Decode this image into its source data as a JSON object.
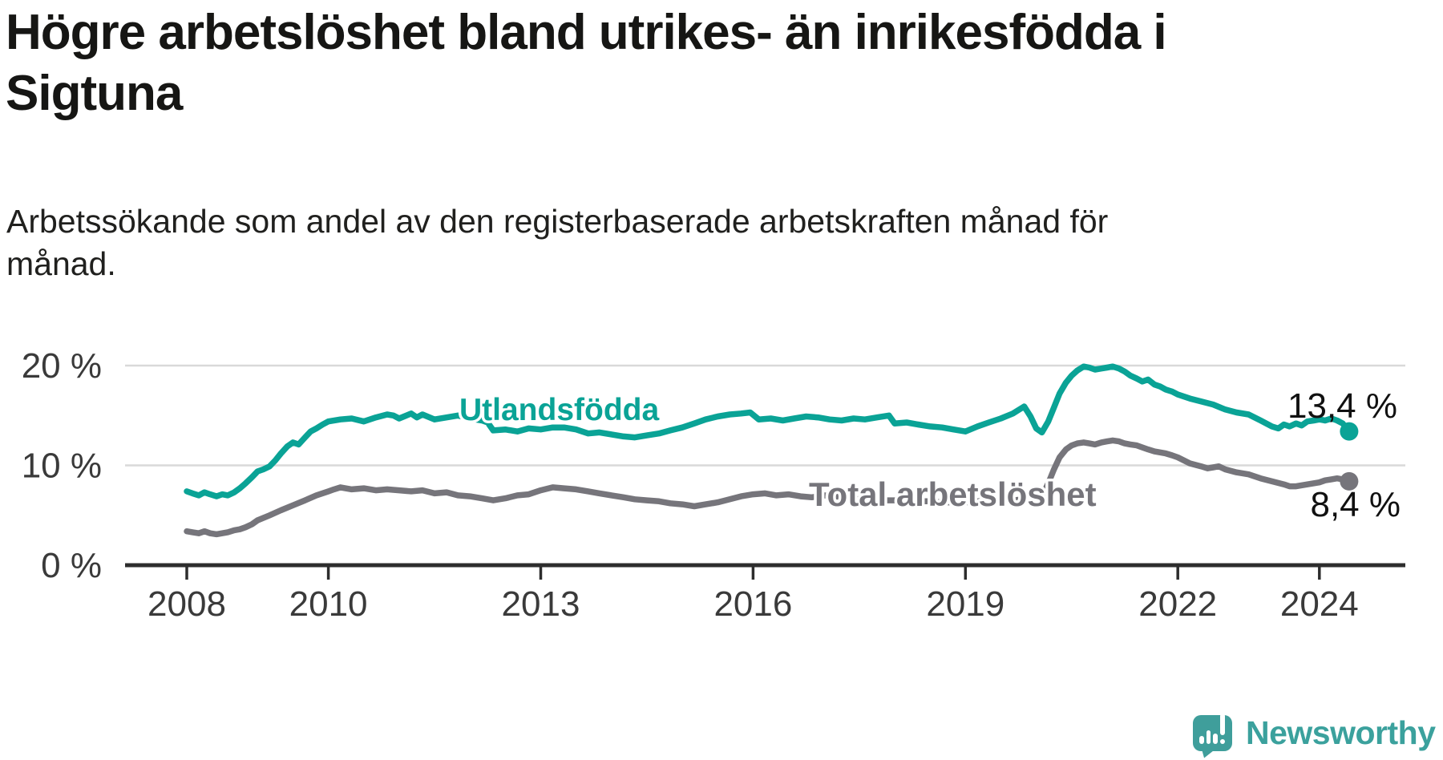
{
  "header": {
    "title": "Högre arbetslöshet bland utrikes- än inrikesfödda i Sigtuna",
    "title_lines": [
      "Högre arbetslöshet bland utrikes- än inrikesfödda i",
      "Sigtuna"
    ],
    "subtitle": "Arbetssökande som andel av den registerbaserade arbetskraften månad för månad.",
    "subtitle_lines": [
      "Arbetssökande som andel av den registerbaserade arbetskraften månad för",
      "månad."
    ]
  },
  "chart_data": {
    "type": "line",
    "title": "Högre arbetslöshet bland utrikes- än inrikesfödda i Sigtuna",
    "subtitle": "Arbetssökande som andel av den registerbaserade arbetskraften månad för månad.",
    "grid": "horizontal-only",
    "legend_position": "inline-labels",
    "x_axis": {
      "label": "",
      "tick_years": [
        2008,
        2010,
        2013,
        2016,
        2019,
        2022,
        2024
      ],
      "tick_labels": [
        "2008",
        "2010",
        "2013",
        "2016",
        "2019",
        "2022",
        "2024"
      ],
      "range": [
        2008,
        2024.42
      ]
    },
    "y_axis": {
      "label": "",
      "unit": "%",
      "tick_values": [
        0,
        10,
        20
      ],
      "tick_labels": [
        "0 %",
        "10 %",
        "20 %"
      ],
      "gridlines": [
        10,
        20
      ],
      "range": [
        0,
        21
      ]
    },
    "series": [
      {
        "name": "Utlandsfödda",
        "color": "#0aa396",
        "end_value": 13.4,
        "end_label": "13,4 %",
        "points": [
          [
            2008.0,
            7.4
          ],
          [
            2008.08,
            7.2
          ],
          [
            2008.17,
            7.0
          ],
          [
            2008.25,
            7.3
          ],
          [
            2008.33,
            7.1
          ],
          [
            2008.42,
            6.9
          ],
          [
            2008.5,
            7.1
          ],
          [
            2008.58,
            7.0
          ],
          [
            2008.67,
            7.3
          ],
          [
            2008.75,
            7.7
          ],
          [
            2008.83,
            8.2
          ],
          [
            2008.92,
            8.8
          ],
          [
            2009.0,
            9.4
          ],
          [
            2009.08,
            9.6
          ],
          [
            2009.17,
            9.9
          ],
          [
            2009.25,
            10.5
          ],
          [
            2009.33,
            11.2
          ],
          [
            2009.42,
            11.9
          ],
          [
            2009.5,
            12.3
          ],
          [
            2009.58,
            12.1
          ],
          [
            2009.67,
            12.8
          ],
          [
            2009.75,
            13.4
          ],
          [
            2009.83,
            13.7
          ],
          [
            2009.92,
            14.1
          ],
          [
            2010.0,
            14.4
          ],
          [
            2010.17,
            14.6
          ],
          [
            2010.33,
            14.7
          ],
          [
            2010.5,
            14.4
          ],
          [
            2010.67,
            14.8
          ],
          [
            2010.83,
            15.1
          ],
          [
            2010.92,
            15.0
          ],
          [
            2011.0,
            14.7
          ],
          [
            2011.17,
            15.2
          ],
          [
            2011.25,
            14.8
          ],
          [
            2011.33,
            15.1
          ],
          [
            2011.5,
            14.6
          ],
          [
            2011.67,
            14.8
          ],
          [
            2011.83,
            15.0
          ],
          [
            2012.0,
            14.7
          ],
          [
            2012.17,
            14.5
          ],
          [
            2012.25,
            14.3
          ],
          [
            2012.33,
            13.5
          ],
          [
            2012.5,
            13.6
          ],
          [
            2012.67,
            13.4
          ],
          [
            2012.83,
            13.7
          ],
          [
            2013.0,
            13.6
          ],
          [
            2013.17,
            13.8
          ],
          [
            2013.33,
            13.8
          ],
          [
            2013.5,
            13.6
          ],
          [
            2013.67,
            13.2
          ],
          [
            2013.83,
            13.3
          ],
          [
            2014.0,
            13.1
          ],
          [
            2014.17,
            12.9
          ],
          [
            2014.33,
            12.8
          ],
          [
            2014.5,
            13.0
          ],
          [
            2014.67,
            13.2
          ],
          [
            2014.83,
            13.5
          ],
          [
            2015.0,
            13.8
          ],
          [
            2015.17,
            14.2
          ],
          [
            2015.33,
            14.6
          ],
          [
            2015.5,
            14.9
          ],
          [
            2015.67,
            15.1
          ],
          [
            2015.83,
            15.2
          ],
          [
            2015.96,
            15.3
          ],
          [
            2016.08,
            14.6
          ],
          [
            2016.25,
            14.7
          ],
          [
            2016.42,
            14.5
          ],
          [
            2016.58,
            14.7
          ],
          [
            2016.75,
            14.9
          ],
          [
            2016.92,
            14.8
          ],
          [
            2017.08,
            14.6
          ],
          [
            2017.25,
            14.5
          ],
          [
            2017.42,
            14.7
          ],
          [
            2017.58,
            14.6
          ],
          [
            2017.75,
            14.8
          ],
          [
            2017.92,
            15.0
          ],
          [
            2018.0,
            14.2
          ],
          [
            2018.17,
            14.3
          ],
          [
            2018.33,
            14.1
          ],
          [
            2018.5,
            13.9
          ],
          [
            2018.67,
            13.8
          ],
          [
            2018.83,
            13.6
          ],
          [
            2019.0,
            13.4
          ],
          [
            2019.17,
            13.9
          ],
          [
            2019.33,
            14.3
          ],
          [
            2019.5,
            14.7
          ],
          [
            2019.67,
            15.2
          ],
          [
            2019.83,
            15.9
          ],
          [
            2019.92,
            14.9
          ],
          [
            2020.0,
            13.7
          ],
          [
            2020.08,
            13.3
          ],
          [
            2020.17,
            14.4
          ],
          [
            2020.25,
            15.8
          ],
          [
            2020.33,
            17.2
          ],
          [
            2020.42,
            18.3
          ],
          [
            2020.5,
            19.0
          ],
          [
            2020.58,
            19.5
          ],
          [
            2020.67,
            19.9
          ],
          [
            2020.75,
            19.8
          ],
          [
            2020.83,
            19.6
          ],
          [
            2020.92,
            19.7
          ],
          [
            2021.0,
            19.8
          ],
          [
            2021.08,
            19.9
          ],
          [
            2021.17,
            19.7
          ],
          [
            2021.25,
            19.4
          ],
          [
            2021.33,
            19.0
          ],
          [
            2021.42,
            18.7
          ],
          [
            2021.5,
            18.4
          ],
          [
            2021.58,
            18.6
          ],
          [
            2021.67,
            18.1
          ],
          [
            2021.75,
            17.9
          ],
          [
            2021.83,
            17.6
          ],
          [
            2021.92,
            17.4
          ],
          [
            2022.0,
            17.1
          ],
          [
            2022.17,
            16.7
          ],
          [
            2022.33,
            16.4
          ],
          [
            2022.5,
            16.1
          ],
          [
            2022.67,
            15.6
          ],
          [
            2022.83,
            15.3
          ],
          [
            2023.0,
            15.1
          ],
          [
            2023.17,
            14.5
          ],
          [
            2023.33,
            13.9
          ],
          [
            2023.42,
            13.7
          ],
          [
            2023.5,
            14.1
          ],
          [
            2023.58,
            13.9
          ],
          [
            2023.67,
            14.2
          ],
          [
            2023.75,
            14.0
          ],
          [
            2023.83,
            14.4
          ],
          [
            2023.92,
            14.5
          ],
          [
            2024.0,
            14.6
          ],
          [
            2024.08,
            14.5
          ],
          [
            2024.17,
            14.7
          ],
          [
            2024.25,
            14.5
          ],
          [
            2024.33,
            14.2
          ],
          [
            2024.42,
            13.4
          ]
        ]
      },
      {
        "name": "Total arbetslöshet",
        "color": "#76757b",
        "end_value": 8.4,
        "end_label": "8,4 %",
        "points": [
          [
            2008.0,
            3.4
          ],
          [
            2008.08,
            3.3
          ],
          [
            2008.17,
            3.2
          ],
          [
            2008.25,
            3.4
          ],
          [
            2008.33,
            3.2
          ],
          [
            2008.42,
            3.1
          ],
          [
            2008.5,
            3.2
          ],
          [
            2008.58,
            3.3
          ],
          [
            2008.67,
            3.5
          ],
          [
            2008.75,
            3.6
          ],
          [
            2008.83,
            3.8
          ],
          [
            2008.92,
            4.1
          ],
          [
            2009.0,
            4.5
          ],
          [
            2009.17,
            5.0
          ],
          [
            2009.33,
            5.5
          ],
          [
            2009.5,
            6.0
          ],
          [
            2009.67,
            6.5
          ],
          [
            2009.83,
            7.0
          ],
          [
            2010.0,
            7.4
          ],
          [
            2010.08,
            7.6
          ],
          [
            2010.17,
            7.8
          ],
          [
            2010.33,
            7.6
          ],
          [
            2010.5,
            7.7
          ],
          [
            2010.67,
            7.5
          ],
          [
            2010.83,
            7.6
          ],
          [
            2011.0,
            7.5
          ],
          [
            2011.17,
            7.4
          ],
          [
            2011.33,
            7.5
          ],
          [
            2011.5,
            7.2
          ],
          [
            2011.67,
            7.3
          ],
          [
            2011.83,
            7.0
          ],
          [
            2012.0,
            6.9
          ],
          [
            2012.17,
            6.7
          ],
          [
            2012.33,
            6.5
          ],
          [
            2012.5,
            6.7
          ],
          [
            2012.67,
            7.0
          ],
          [
            2012.83,
            7.1
          ],
          [
            2013.0,
            7.5
          ],
          [
            2013.17,
            7.8
          ],
          [
            2013.33,
            7.7
          ],
          [
            2013.5,
            7.6
          ],
          [
            2013.67,
            7.4
          ],
          [
            2013.83,
            7.2
          ],
          [
            2014.0,
            7.0
          ],
          [
            2014.17,
            6.8
          ],
          [
            2014.33,
            6.6
          ],
          [
            2014.5,
            6.5
          ],
          [
            2014.67,
            6.4
          ],
          [
            2014.83,
            6.2
          ],
          [
            2015.0,
            6.1
          ],
          [
            2015.17,
            5.9
          ],
          [
            2015.33,
            6.1
          ],
          [
            2015.5,
            6.3
          ],
          [
            2015.67,
            6.6
          ],
          [
            2015.83,
            6.9
          ],
          [
            2016.0,
            7.1
          ],
          [
            2016.17,
            7.2
          ],
          [
            2016.33,
            7.0
          ],
          [
            2016.5,
            7.1
          ],
          [
            2016.67,
            6.9
          ],
          [
            2016.83,
            6.8
          ],
          [
            2017.0,
            7.0
          ],
          [
            2017.17,
            6.9
          ],
          [
            2017.33,
            6.7
          ],
          [
            2017.5,
            6.6
          ],
          [
            2017.67,
            6.7
          ],
          [
            2017.83,
            6.5
          ],
          [
            2018.0,
            6.5
          ],
          [
            2018.17,
            6.6
          ],
          [
            2018.33,
            6.4
          ],
          [
            2018.5,
            6.4
          ],
          [
            2018.67,
            6.3
          ],
          [
            2018.83,
            6.3
          ],
          [
            2019.0,
            6.3
          ],
          [
            2019.17,
            6.4
          ],
          [
            2019.33,
            6.4
          ],
          [
            2019.5,
            6.5
          ],
          [
            2019.67,
            6.5
          ],
          [
            2019.83,
            6.6
          ],
          [
            2019.92,
            6.7
          ],
          [
            2020.0,
            6.6
          ],
          [
            2020.08,
            6.9
          ],
          [
            2020.17,
            8.2
          ],
          [
            2020.25,
            9.6
          ],
          [
            2020.33,
            10.8
          ],
          [
            2020.42,
            11.6
          ],
          [
            2020.5,
            12.0
          ],
          [
            2020.58,
            12.2
          ],
          [
            2020.67,
            12.3
          ],
          [
            2020.75,
            12.2
          ],
          [
            2020.83,
            12.1
          ],
          [
            2020.92,
            12.3
          ],
          [
            2021.0,
            12.4
          ],
          [
            2021.08,
            12.5
          ],
          [
            2021.17,
            12.4
          ],
          [
            2021.25,
            12.2
          ],
          [
            2021.33,
            12.1
          ],
          [
            2021.42,
            12.0
          ],
          [
            2021.5,
            11.8
          ],
          [
            2021.58,
            11.6
          ],
          [
            2021.67,
            11.4
          ],
          [
            2021.75,
            11.3
          ],
          [
            2021.83,
            11.2
          ],
          [
            2021.92,
            11.0
          ],
          [
            2022.0,
            10.8
          ],
          [
            2022.17,
            10.2
          ],
          [
            2022.33,
            9.9
          ],
          [
            2022.42,
            9.7
          ],
          [
            2022.5,
            9.8
          ],
          [
            2022.58,
            9.9
          ],
          [
            2022.67,
            9.6
          ],
          [
            2022.83,
            9.3
          ],
          [
            2023.0,
            9.1
          ],
          [
            2023.17,
            8.7
          ],
          [
            2023.33,
            8.4
          ],
          [
            2023.5,
            8.1
          ],
          [
            2023.58,
            7.9
          ],
          [
            2023.67,
            7.9
          ],
          [
            2023.83,
            8.1
          ],
          [
            2024.0,
            8.3
          ],
          [
            2024.08,
            8.5
          ],
          [
            2024.17,
            8.6
          ],
          [
            2024.25,
            8.7
          ],
          [
            2024.33,
            8.6
          ],
          [
            2024.42,
            8.4
          ]
        ]
      }
    ]
  },
  "footer": {
    "brand": "Newsworthy",
    "brand_color": "#3ba19d"
  }
}
